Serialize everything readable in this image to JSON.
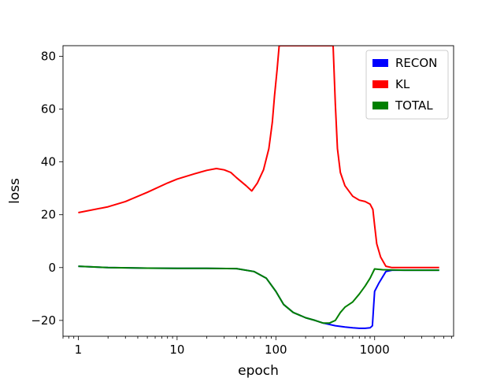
{
  "chart_data": {
    "type": "line",
    "xlabel": "epoch",
    "ylabel": "loss",
    "xscale": "log",
    "xlim": [
      0.7,
      6300
    ],
    "ylim": [
      -26,
      84
    ],
    "grid": false,
    "legend_placement": "top-right",
    "x_ticks": [
      {
        "value": 1,
        "label": "1"
      },
      {
        "value": 10,
        "label": "10"
      },
      {
        "value": 100,
        "label": "100"
      },
      {
        "value": 1000,
        "label": "1000"
      }
    ],
    "y_ticks": [
      {
        "value": -20,
        "label": "−20"
      },
      {
        "value": 0,
        "label": "0"
      },
      {
        "value": 20,
        "label": "20"
      },
      {
        "value": 40,
        "label": "40"
      },
      {
        "value": 60,
        "label": "60"
      },
      {
        "value": 80,
        "label": "80"
      }
    ],
    "series": [
      {
        "name": "RECON",
        "color": "#0000ff",
        "points": [
          [
            1,
            0.5
          ],
          [
            2,
            0
          ],
          [
            5,
            -0.2
          ],
          [
            10,
            -0.3
          ],
          [
            20,
            -0.3
          ],
          [
            40,
            -0.4
          ],
          [
            60,
            -1.5
          ],
          [
            80,
            -4
          ],
          [
            100,
            -9
          ],
          [
            120,
            -14
          ],
          [
            150,
            -17
          ],
          [
            200,
            -19
          ],
          [
            250,
            -20
          ],
          [
            300,
            -21
          ],
          [
            400,
            -22
          ],
          [
            500,
            -22.5
          ],
          [
            600,
            -22.8
          ],
          [
            700,
            -23
          ],
          [
            800,
            -23
          ],
          [
            900,
            -22.8
          ],
          [
            950,
            -22
          ],
          [
            980,
            -14
          ],
          [
            1000,
            -9
          ],
          [
            1100,
            -6
          ],
          [
            1300,
            -1.5
          ],
          [
            1500,
            -1
          ],
          [
            2000,
            -1
          ],
          [
            3000,
            -1
          ],
          [
            4500,
            -1
          ]
        ]
      },
      {
        "name": "KL",
        "color": "#ff0000",
        "points": [
          [
            1,
            20.8
          ],
          [
            2,
            23
          ],
          [
            3,
            25
          ],
          [
            5,
            28.5
          ],
          [
            8,
            32
          ],
          [
            10,
            33.5
          ],
          [
            15,
            35.5
          ],
          [
            20,
            36.8
          ],
          [
            25,
            37.5
          ],
          [
            30,
            37
          ],
          [
            35,
            36
          ],
          [
            40,
            34
          ],
          [
            50,
            31
          ],
          [
            57,
            29
          ],
          [
            65,
            32
          ],
          [
            75,
            37
          ],
          [
            85,
            45
          ],
          [
            92,
            55
          ],
          [
            97,
            65
          ],
          [
            103,
            75
          ],
          [
            108,
            84
          ],
          [
            380,
            84
          ],
          [
            400,
            62
          ],
          [
            420,
            45
          ],
          [
            450,
            36
          ],
          [
            500,
            31
          ],
          [
            600,
            27
          ],
          [
            700,
            25.5
          ],
          [
            800,
            25
          ],
          [
            900,
            24
          ],
          [
            960,
            22
          ],
          [
            1000,
            16
          ],
          [
            1050,
            9
          ],
          [
            1150,
            4
          ],
          [
            1300,
            0.5
          ],
          [
            1500,
            0
          ],
          [
            2000,
            0
          ],
          [
            3000,
            0
          ],
          [
            4500,
            0
          ]
        ]
      },
      {
        "name": "TOTAL",
        "color": "#008000",
        "points": [
          [
            1,
            0.5
          ],
          [
            2,
            0
          ],
          [
            5,
            -0.2
          ],
          [
            10,
            -0.3
          ],
          [
            20,
            -0.3
          ],
          [
            40,
            -0.4
          ],
          [
            60,
            -1.5
          ],
          [
            80,
            -4
          ],
          [
            100,
            -9
          ],
          [
            120,
            -14
          ],
          [
            150,
            -17
          ],
          [
            200,
            -19
          ],
          [
            250,
            -20
          ],
          [
            300,
            -21
          ],
          [
            350,
            -21
          ],
          [
            400,
            -20
          ],
          [
            450,
            -17
          ],
          [
            500,
            -15
          ],
          [
            600,
            -13
          ],
          [
            700,
            -10
          ],
          [
            800,
            -7
          ],
          [
            900,
            -4
          ],
          [
            1000,
            -0.5
          ],
          [
            1200,
            -0.8
          ],
          [
            2000,
            -1
          ],
          [
            3000,
            -1
          ],
          [
            4500,
            -1
          ]
        ]
      }
    ]
  }
}
